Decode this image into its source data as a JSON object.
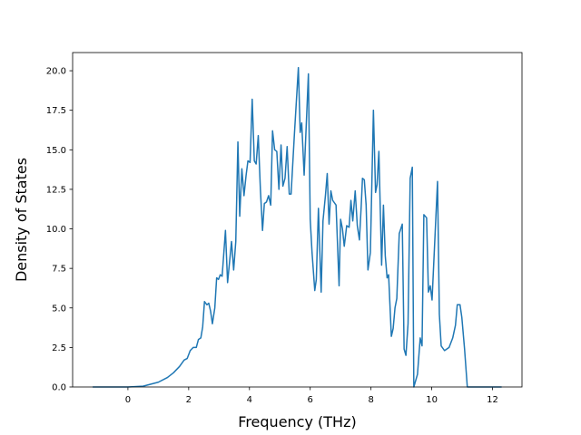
{
  "chart_data": {
    "type": "line",
    "xlabel": "Frequency (THz)",
    "ylabel": "Density of States",
    "color": "#1f77b4",
    "x": [
      -1.16,
      0,
      0.5,
      1.0,
      1.3,
      1.5,
      1.7,
      1.85,
      1.95,
      2.05,
      2.15,
      2.25,
      2.32,
      2.4,
      2.46,
      2.52,
      2.6,
      2.66,
      2.72,
      2.78,
      2.86,
      2.92,
      2.98,
      3.04,
      3.1,
      3.15,
      3.21,
      3.28,
      3.35,
      3.41,
      3.48,
      3.55,
      3.62,
      3.68,
      3.75,
      3.82,
      3.89,
      3.95,
      4.02,
      4.09,
      4.16,
      4.22,
      4.29,
      4.36,
      4.43,
      4.49,
      4.56,
      4.63,
      4.7,
      4.76,
      4.83,
      4.9,
      4.97,
      5.04,
      5.1,
      5.17,
      5.24,
      5.31,
      5.37,
      5.48,
      5.61,
      5.67,
      5.72,
      5.8,
      5.94,
      6.0,
      6.06,
      6.15,
      6.2,
      6.27,
      6.36,
      6.42,
      6.5,
      6.56,
      6.62,
      6.68,
      6.74,
      6.85,
      6.95,
      7.0,
      7.06,
      7.12,
      7.2,
      7.28,
      7.34,
      7.4,
      7.48,
      7.55,
      7.62,
      7.68,
      7.72,
      7.78,
      7.84,
      7.9,
      7.98,
      8.08,
      8.15,
      8.2,
      8.26,
      8.35,
      8.41,
      8.47,
      8.53,
      8.58,
      8.67,
      8.73,
      8.79,
      8.85,
      8.93,
      9.03,
      9.09,
      9.15,
      9.22,
      9.29,
      9.36,
      9.41,
      9.53,
      9.62,
      9.68,
      9.74,
      9.83,
      9.89,
      9.95,
      10.01,
      10.19,
      10.25,
      10.31,
      10.42,
      10.57,
      10.69,
      10.78,
      10.84,
      10.93,
      10.99,
      11.08,
      11.17,
      12.3
    ],
    "values": [
      0,
      0,
      0.05,
      0.3,
      0.6,
      0.9,
      1.3,
      1.7,
      1.8,
      2.3,
      2.5,
      2.5,
      3.0,
      3.1,
      3.8,
      5.4,
      5.2,
      5.3,
      4.8,
      4.0,
      5.0,
      6.9,
      6.8,
      7.1,
      7.0,
      8.3,
      9.9,
      6.6,
      8.0,
      9.2,
      7.4,
      9.2,
      15.5,
      10.8,
      13.8,
      12.1,
      13.4,
      14.3,
      14.2,
      18.2,
      14.3,
      14.1,
      15.9,
      12.5,
      9.9,
      11.6,
      11.7,
      12.1,
      11.5,
      16.2,
      15.0,
      14.9,
      12.5,
      15.3,
      12.7,
      13.2,
      15.2,
      12.2,
      12.2,
      16.0,
      20.2,
      16.1,
      16.7,
      13.4,
      19.8,
      10.6,
      8.5,
      6.1,
      6.8,
      11.3,
      6.0,
      10.5,
      12.1,
      13.5,
      10.3,
      12.4,
      11.8,
      11.5,
      6.4,
      10.6,
      10.0,
      8.9,
      10.2,
      10.1,
      11.8,
      10.5,
      12.4,
      10.2,
      9.3,
      11.5,
      13.2,
      13.1,
      11.5,
      7.4,
      8.5,
      17.5,
      12.3,
      12.8,
      14.9,
      7.7,
      11.5,
      8.3,
      6.9,
      7.1,
      3.2,
      3.7,
      5.0,
      5.6,
      9.7,
      10.3,
      2.4,
      2.0,
      4.0,
      13.2,
      13.9,
      0.0,
      0.8,
      3.1,
      2.6,
      10.9,
      10.7,
      6.0,
      6.4,
      5.5,
      13.0,
      4.6,
      2.6,
      2.3,
      2.5,
      3.1,
      3.9,
      5.2,
      5.2,
      4.4,
      2.4,
      0,
      0
    ],
    "xlim": [
      -1.82,
      12.97
    ],
    "xticks": [
      0,
      2,
      4,
      6,
      8,
      10,
      12
    ],
    "ylim": [
      0,
      21.15
    ],
    "yticks": [
      {
        "value": 0,
        "label": "0.0"
      },
      {
        "value": 2.5,
        "label": "2.5"
      },
      {
        "value": 5,
        "label": "5.0"
      },
      {
        "value": 7.5,
        "label": "7.5"
      },
      {
        "value": 10,
        "label": "10.0"
      },
      {
        "value": 12.5,
        "label": "12.5"
      },
      {
        "value": 15,
        "label": "15.0"
      },
      {
        "value": 17.5,
        "label": "17.5"
      },
      {
        "value": 20,
        "label": "20.0"
      }
    ],
    "grid": false
  }
}
